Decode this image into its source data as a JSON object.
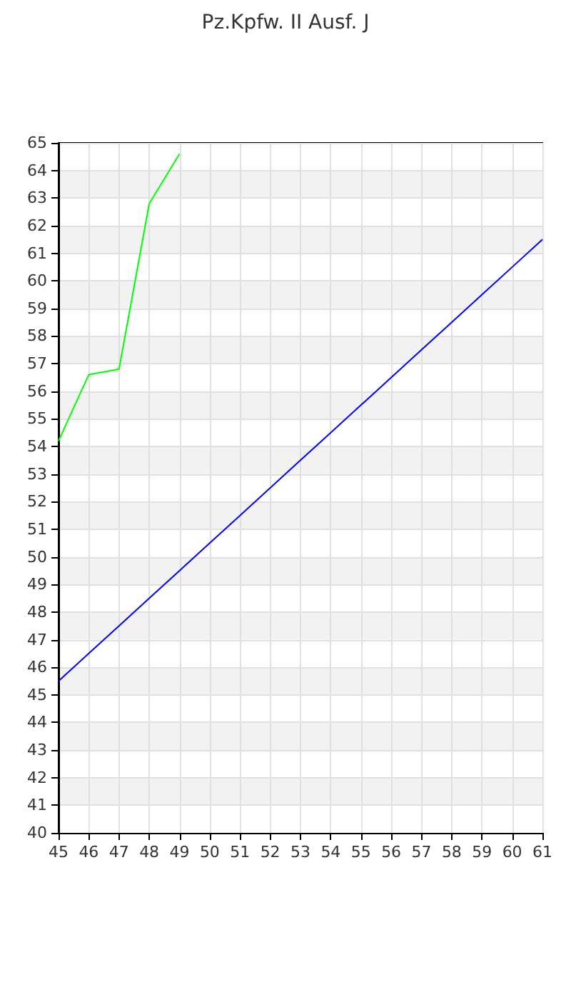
{
  "chart_data": {
    "type": "line",
    "title": "Pz.Kpfw. II Ausf. J",
    "x": [
      45,
      46,
      47,
      48,
      49,
      50,
      51,
      52,
      53,
      54,
      55,
      56,
      57,
      58,
      59,
      60,
      61
    ],
    "xlim": [
      45,
      61
    ],
    "xticks": [
      45,
      46,
      47,
      48,
      49,
      50,
      51,
      52,
      53,
      54,
      55,
      56,
      57,
      58,
      59,
      60,
      61
    ],
    "ylim": [
      40,
      65
    ],
    "yticks": [
      40,
      41,
      42,
      43,
      44,
      45,
      46,
      47,
      48,
      49,
      50,
      51,
      52,
      53,
      54,
      55,
      56,
      57,
      58,
      59,
      60,
      61,
      62,
      63,
      64,
      65
    ],
    "grid": true,
    "marker": "none",
    "line_style": "solid",
    "series": [
      {
        "color": "#00ff00",
        "values": [
          54.2,
          56.6,
          56.8,
          62.8,
          64.6,
          null,
          null,
          null,
          null,
          null,
          null,
          null,
          null,
          null,
          null,
          null,
          null
        ]
      },
      {
        "color": "#0000ff",
        "values": [
          45.5,
          46.5,
          47.5,
          48.5,
          49.5,
          50.5,
          51.5,
          52.5,
          53.5,
          54.5,
          55.5,
          56.5,
          57.5,
          58.5,
          59.5,
          60.5,
          61.5
        ]
      }
    ]
  }
}
